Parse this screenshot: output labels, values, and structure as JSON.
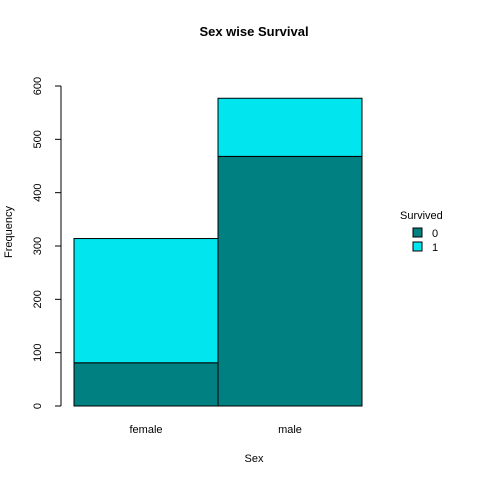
{
  "chart_data": {
    "type": "bar",
    "stacked": true,
    "title": "Sex wise Survival",
    "xlabel": "Sex",
    "ylabel": "Frequency",
    "categories": [
      "female",
      "male"
    ],
    "ylim": [
      0,
      600
    ],
    "yticks": [
      "0",
      "100",
      "200",
      "300",
      "400",
      "500",
      "600"
    ],
    "series": [
      {
        "name": "0",
        "values": [
          81,
          468
        ],
        "color": "#008080"
      },
      {
        "name": "1",
        "values": [
          233,
          109
        ],
        "color": "#00E5EE"
      }
    ],
    "legend": {
      "title": "Survived",
      "position": "right"
    },
    "grid": false
  }
}
